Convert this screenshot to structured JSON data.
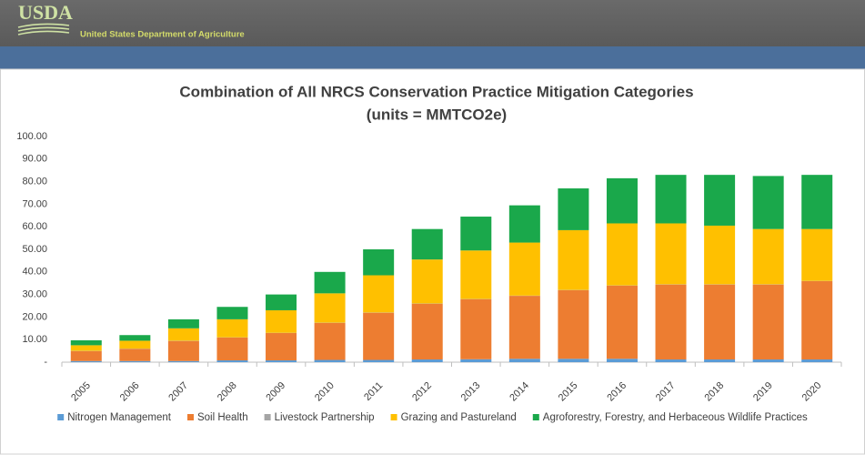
{
  "header": {
    "logo": "USDA",
    "agency": "United States Department of Agriculture"
  },
  "chart_data": {
    "type": "stacked-bar",
    "title": "Combination of All NRCS Conservation Practice Mitigation Categories",
    "subtitle": "(units = MMTCO2e)",
    "categories": [
      "2005",
      "2006",
      "2007",
      "2008",
      "2009",
      "2010",
      "2011",
      "2012",
      "2013",
      "2014",
      "2015",
      "2016",
      "2017",
      "2018",
      "2019",
      "2020"
    ],
    "series": [
      {
        "name": "Nitrogen Management",
        "color": "#5b9bd5",
        "values": [
          0.5,
          0.5,
          0.5,
          0.8,
          0.8,
          1,
          1,
          1.2,
          1.3,
          1.5,
          1.5,
          1.5,
          1.2,
          1.2,
          1.2,
          1.2
        ]
      },
      {
        "name": "Soil Health",
        "color": "#ed7d31",
        "values": [
          4.4,
          5.4,
          8.9,
          10.1,
          12.1,
          16.4,
          20.9,
          24.7,
          26.6,
          27.9,
          30.4,
          32.4,
          33.2,
          33.2,
          33.2,
          34.7
        ]
      },
      {
        "name": "Livestock Partnership",
        "color": "#a5a5a5",
        "values": [
          0.1,
          0.1,
          0.1,
          0.1,
          0.1,
          0.1,
          0.1,
          0.1,
          0.1,
          0.1,
          0.1,
          0.1,
          0.1,
          0.1,
          0.1,
          0.1
        ]
      },
      {
        "name": "Grazing and Pastureland",
        "color": "#ffc000",
        "values": [
          2.5,
          3.5,
          5.5,
          8,
          10,
          13,
          16.5,
          19.5,
          21.5,
          23.5,
          26.5,
          27.5,
          27,
          26,
          24.5,
          23
        ]
      },
      {
        "name": "Agroforestry, Forestry, and Herbaceous Wildlife Practices",
        "color": "#1aa84b",
        "values": [
          2.2,
          2.5,
          4,
          5.5,
          7,
          9.5,
          11.5,
          13.5,
          15,
          16.5,
          18.5,
          20,
          21.5,
          22.5,
          23.5,
          24
        ]
      }
    ],
    "ylim": [
      0,
      100
    ],
    "yticks": [
      {
        "value": 0,
        "label": "-"
      },
      {
        "value": 10,
        "label": "10.00"
      },
      {
        "value": 20,
        "label": "20.00"
      },
      {
        "value": 30,
        "label": "30.00"
      },
      {
        "value": 40,
        "label": "40.00"
      },
      {
        "value": 50,
        "label": "50.00"
      },
      {
        "value": 60,
        "label": "60.00"
      },
      {
        "value": 70,
        "label": "70.00"
      },
      {
        "value": 80,
        "label": "80.00"
      },
      {
        "value": 90,
        "label": "90.00"
      },
      {
        "value": 100,
        "label": "100.00"
      }
    ],
    "grid": false,
    "legend": "bottom"
  }
}
